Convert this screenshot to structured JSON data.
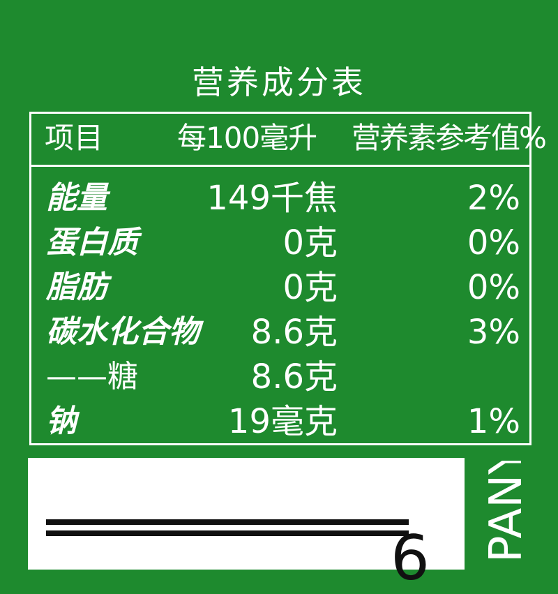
{
  "title": "营养成分表",
  "header": {
    "item": "项目",
    "per_100ml": "每100毫升",
    "nrv": "营养素参考值%"
  },
  "rows": [
    {
      "name": "能量",
      "amount": "149千焦",
      "nrv": "2%"
    },
    {
      "name": "蛋白质",
      "amount": "0克",
      "nrv": "0%"
    },
    {
      "name": "脂肪",
      "amount": "0克",
      "nrv": "0%"
    },
    {
      "name": "碳水化合物",
      "amount": "8.6克",
      "nrv": "3%"
    },
    {
      "name": "——糖",
      "amount": "8.6克",
      "nrv": ""
    },
    {
      "name": "钠",
      "amount": "19毫克",
      "nrv": "1%"
    }
  ],
  "bottom": {
    "partial_digit": "6",
    "side_text": "PANY"
  },
  "colors": {
    "background": "#1e8a2e",
    "text": "#ffffff"
  }
}
